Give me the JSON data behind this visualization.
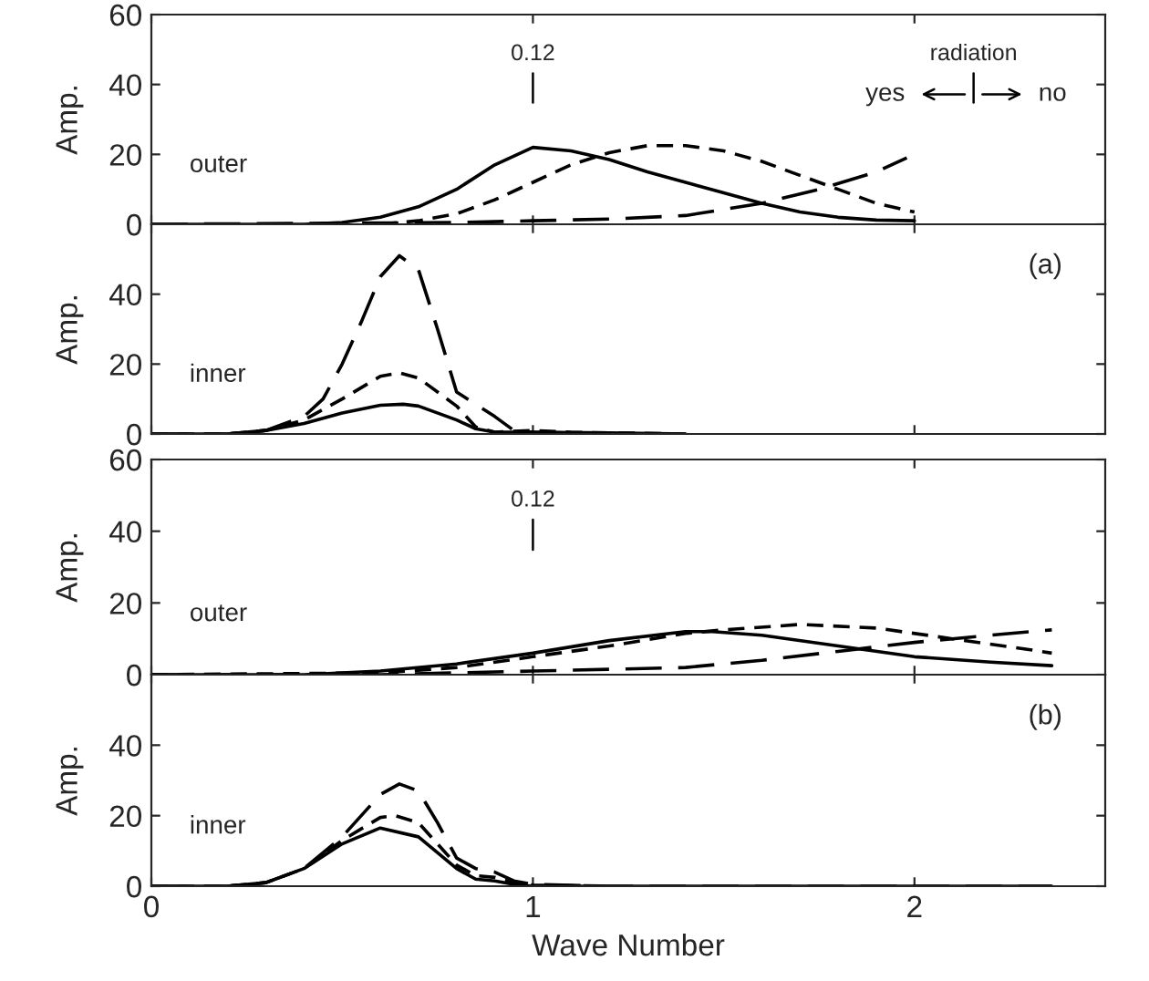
{
  "chart_data": [
    {
      "type": "line",
      "ylabel": "Amp.",
      "xlim": [
        0,
        2.5
      ],
      "xticks": [
        0,
        1,
        2
      ],
      "ylim": [
        0,
        60
      ],
      "yticks": [
        0,
        20,
        40,
        60
      ],
      "tick_labels": "y",
      "grid": false,
      "legend": false,
      "annotations": [
        "outer",
        "0.12",
        "radiation",
        "yes",
        "no"
      ],
      "series": [
        {
          "color": "#000000",
          "line_style": "solid",
          "x": [
            0,
            0.4,
            0.5,
            0.6,
            0.7,
            0.8,
            0.9,
            1.0,
            1.1,
            1.2,
            1.3,
            1.4,
            1.5,
            1.6,
            1.7,
            1.8,
            1.9,
            2.0
          ],
          "values": [
            0,
            0,
            0.5,
            2,
            5,
            10,
            17,
            22,
            21,
            18.5,
            15,
            12,
            9,
            6,
            3.5,
            2,
            1.2,
            1
          ]
        },
        {
          "color": "#000000",
          "line_style": "dashed",
          "x": [
            0.6,
            0.7,
            0.8,
            0.9,
            1.0,
            1.1,
            1.2,
            1.3,
            1.4,
            1.5,
            1.6,
            1.7,
            1.8,
            1.9,
            2.0
          ],
          "values": [
            0,
            1,
            3,
            7,
            12,
            17,
            20.5,
            22.5,
            22.5,
            21,
            18,
            14,
            10,
            6,
            3.5
          ]
        },
        {
          "color": "#000000",
          "line_style": "long dashed",
          "x": [
            0,
            0.8,
            1.0,
            1.2,
            1.4,
            1.6,
            1.75,
            1.9,
            1.98
          ],
          "values": [
            0,
            0.5,
            1,
            1.5,
            2.5,
            6,
            10,
            15,
            19
          ]
        }
      ]
    },
    {
      "type": "line",
      "ylabel": "Amp.",
      "xlim": [
        0,
        2.5
      ],
      "xticks": [
        0,
        1,
        2
      ],
      "ylim": [
        0,
        60
      ],
      "yticks": [
        0,
        20,
        40
      ],
      "tick_labels": "y",
      "grid": false,
      "legend": false,
      "annotations": [
        "inner",
        "(a)"
      ],
      "series": [
        {
          "color": "#000000",
          "line_style": "solid",
          "x": [
            0,
            0.2,
            0.3,
            0.4,
            0.5,
            0.6,
            0.66,
            0.7,
            0.8,
            0.85,
            0.9,
            1.0,
            1.2,
            1.4
          ],
          "values": [
            0,
            0,
            1,
            3,
            6,
            8.2,
            8.5,
            8,
            4,
            1.5,
            0.5,
            0.5,
            0.3,
            0
          ]
        },
        {
          "color": "#000000",
          "line_style": "dashed",
          "x": [
            0,
            0.2,
            0.3,
            0.4,
            0.5,
            0.6,
            0.65,
            0.7,
            0.8,
            0.85,
            0.9,
            1.0,
            1.1,
            1.4
          ],
          "values": [
            0,
            0,
            1,
            4,
            10,
            16.5,
            17.5,
            16,
            8,
            2,
            0.5,
            1,
            0.5,
            0
          ]
        },
        {
          "color": "#000000",
          "line_style": "long dashed",
          "x": [
            0,
            0.2,
            0.3,
            0.4,
            0.45,
            0.5,
            0.55,
            0.6,
            0.65,
            0.7,
            0.75,
            0.8,
            0.85,
            0.9,
            0.95,
            1.0,
            1.2,
            1.4
          ],
          "values": [
            0,
            0,
            1,
            5,
            10,
            20,
            32,
            45,
            51,
            47,
            30,
            12,
            8.5,
            5,
            1,
            0.5,
            0,
            0
          ]
        }
      ]
    },
    {
      "type": "line",
      "ylabel": "Amp.",
      "xlim": [
        0,
        2.5
      ],
      "xticks": [
        0,
        1,
        2
      ],
      "ylim": [
        0,
        60
      ],
      "yticks": [
        0,
        20,
        40,
        60
      ],
      "tick_labels": "y",
      "grid": false,
      "legend": false,
      "annotations": [
        "outer",
        "0.12"
      ],
      "series": [
        {
          "color": "#000000",
          "line_style": "solid",
          "x": [
            0,
            0.4,
            0.6,
            0.8,
            1.0,
            1.2,
            1.4,
            1.47,
            1.6,
            1.8,
            2.0,
            2.2,
            2.36
          ],
          "values": [
            0,
            0,
            1,
            3,
            6,
            9.5,
            12,
            12,
            11,
            8,
            5,
            3.5,
            2.5
          ]
        },
        {
          "color": "#000000",
          "line_style": "dashed",
          "x": [
            0,
            0.6,
            0.8,
            1.0,
            1.2,
            1.4,
            1.5,
            1.7,
            1.9,
            2.1,
            2.3,
            2.36
          ],
          "values": [
            0,
            0.5,
            2,
            5,
            8,
            11.5,
            12.5,
            14,
            13,
            10,
            7,
            6
          ]
        },
        {
          "color": "#000000",
          "line_style": "long dashed",
          "x": [
            0,
            0.6,
            1.0,
            1.4,
            1.6,
            1.8,
            2.0,
            2.2,
            2.36
          ],
          "values": [
            0,
            0,
            1,
            2,
            4,
            6.5,
            9,
            11,
            12.5
          ]
        }
      ]
    },
    {
      "type": "line",
      "xlabel": "Wave Number",
      "ylabel": "Amp.",
      "xlim": [
        0,
        2.5
      ],
      "xticks": [
        0,
        1,
        2
      ],
      "ylim": [
        0,
        60
      ],
      "yticks": [
        0,
        20,
        40
      ],
      "grid": false,
      "legend": false,
      "annotations": [
        "inner",
        "(b)"
      ],
      "series": [
        {
          "color": "#000000",
          "line_style": "solid",
          "x": [
            0,
            0.2,
            0.3,
            0.4,
            0.5,
            0.6,
            0.7,
            0.8,
            0.85,
            0.9,
            0.95,
            1.0,
            2.36
          ],
          "values": [
            0,
            0,
            1,
            5,
            12,
            16.5,
            14,
            5,
            2,
            1.5,
            0.5,
            0,
            0
          ]
        },
        {
          "color": "#000000",
          "line_style": "dashed",
          "x": [
            0,
            0.2,
            0.3,
            0.4,
            0.5,
            0.6,
            0.64,
            0.7,
            0.8,
            0.85,
            0.9,
            0.95,
            1.0,
            1.2
          ],
          "values": [
            0,
            0,
            1,
            5,
            13,
            19.5,
            20,
            18,
            6,
            3,
            2.5,
            1,
            0.3,
            0
          ]
        },
        {
          "color": "#000000",
          "line_style": "long dashed",
          "x": [
            0,
            0.2,
            0.3,
            0.4,
            0.5,
            0.6,
            0.65,
            0.7,
            0.75,
            0.8,
            0.85,
            0.9,
            0.95,
            1.0,
            1.2,
            2.36
          ],
          "values": [
            0,
            0,
            1,
            5,
            14,
            26,
            29,
            27,
            18,
            8,
            5,
            4,
            1.5,
            0.5,
            0,
            0
          ]
        }
      ]
    }
  ]
}
